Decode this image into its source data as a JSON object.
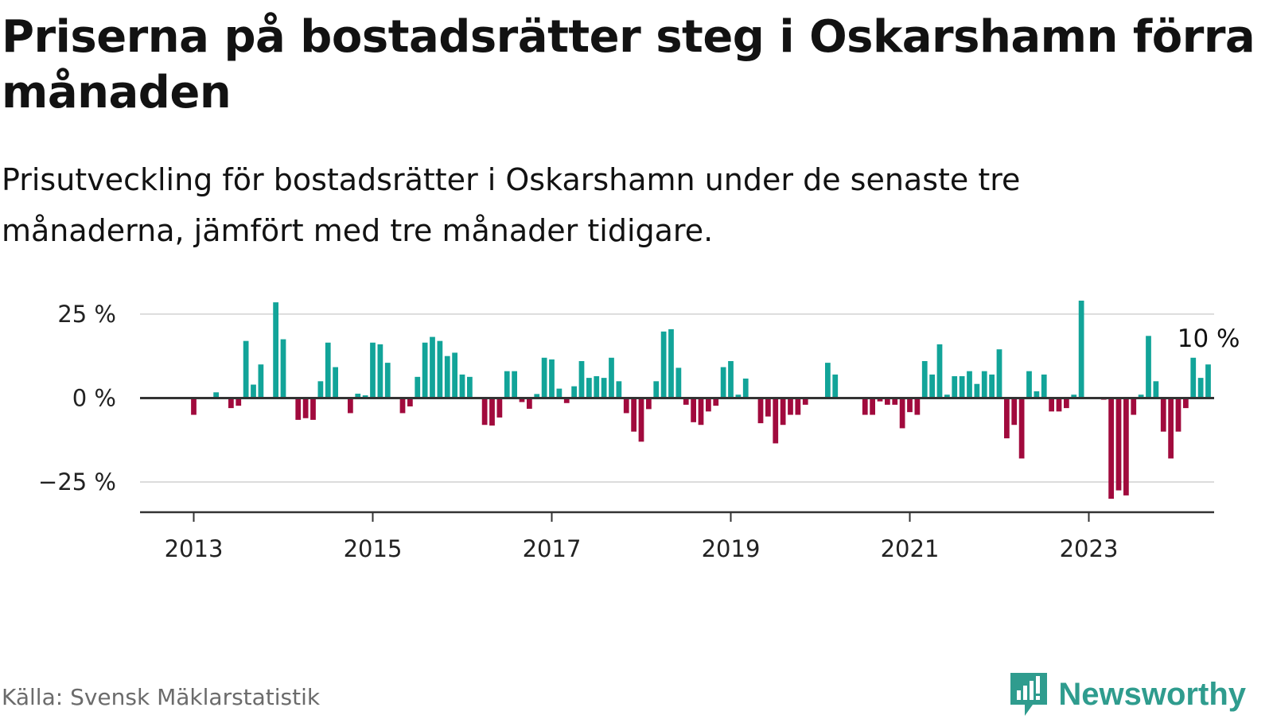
{
  "title": "Priserna på bostadsrätter steg i Oskarshamn förra månaden",
  "subtitle": "Prisutveckling för bostadsrätter i Oskarshamn under de senaste tre månaderna, jämfört med tre månader tidigare.",
  "source": "Källa: Svensk Mäklarstatistik",
  "brand": "Newsworthy",
  "colors": {
    "positive": "#12a499",
    "negative": "#a10a3d",
    "grid": "#dcdcdc",
    "axis": "#333333",
    "brand": "#2f9c8e"
  },
  "chart_data": {
    "type": "bar",
    "title": "Priserna på bostadsrätter steg i Oskarshamn förra månaden",
    "xlabel": "",
    "ylabel": "",
    "ylim": [
      -34,
      29
    ],
    "y_ticks": [
      {
        "value": 25,
        "label": "25 %"
      },
      {
        "value": 0,
        "label": "0 %"
      },
      {
        "value": -25,
        "label": "−25 %"
      }
    ],
    "x_ticks": [
      {
        "value": 2013,
        "label": "2013"
      },
      {
        "value": 2015,
        "label": "2015"
      },
      {
        "value": 2017,
        "label": "2017"
      },
      {
        "value": 2019,
        "label": "2019"
      },
      {
        "value": 2021,
        "label": "2021"
      },
      {
        "value": 2023,
        "label": "2023"
      }
    ],
    "x_range": [
      2012.4,
      2024.4
    ],
    "start": {
      "year": 2013,
      "month": 1
    },
    "annotation": {
      "text": "10 %",
      "value": 10.5
    },
    "values": [
      -5,
      0,
      0,
      1.7,
      0,
      -3,
      -2.3,
      17,
      4,
      10,
      0,
      28.5,
      17.5,
      0,
      -6.5,
      -6,
      -6.5,
      5,
      16.5,
      9.2,
      0,
      -4.5,
      1.3,
      0.8,
      16.5,
      16,
      10.5,
      0,
      -4.5,
      -2.5,
      6.3,
      16.5,
      18.2,
      17,
      12.5,
      13.5,
      7,
      6.3,
      0,
      -8,
      -8.2,
      -5.8,
      8,
      8,
      -1.2,
      -3.2,
      1.2,
      12,
      11.5,
      2.8,
      -1.5,
      3.5,
      11,
      6,
      6.5,
      6,
      12,
      5,
      -4.5,
      -10,
      -13,
      -3.3,
      5,
      19.8,
      20.5,
      9,
      -2,
      -7.2,
      -8,
      -4,
      -2.3,
      9.2,
      11,
      1,
      5.8,
      0,
      -7.5,
      -5.5,
      -13.5,
      -8,
      -5,
      -5,
      -2,
      0,
      0,
      10.5,
      7,
      0,
      0,
      0,
      -5,
      -5,
      -1,
      -2,
      -2,
      -9,
      -4.2,
      -5,
      11,
      7,
      16,
      1,
      6.5,
      6.5,
      8,
      4.2,
      8,
      7,
      14.5,
      -12,
      -8,
      -18,
      8,
      2,
      7,
      -4,
      -4,
      -3,
      1,
      29,
      0,
      0,
      -0.5,
      -30,
      -27.5,
      -29,
      -5,
      1,
      18.5,
      5,
      -10,
      -18,
      -10,
      -3,
      12,
      6,
      10
    ]
  }
}
